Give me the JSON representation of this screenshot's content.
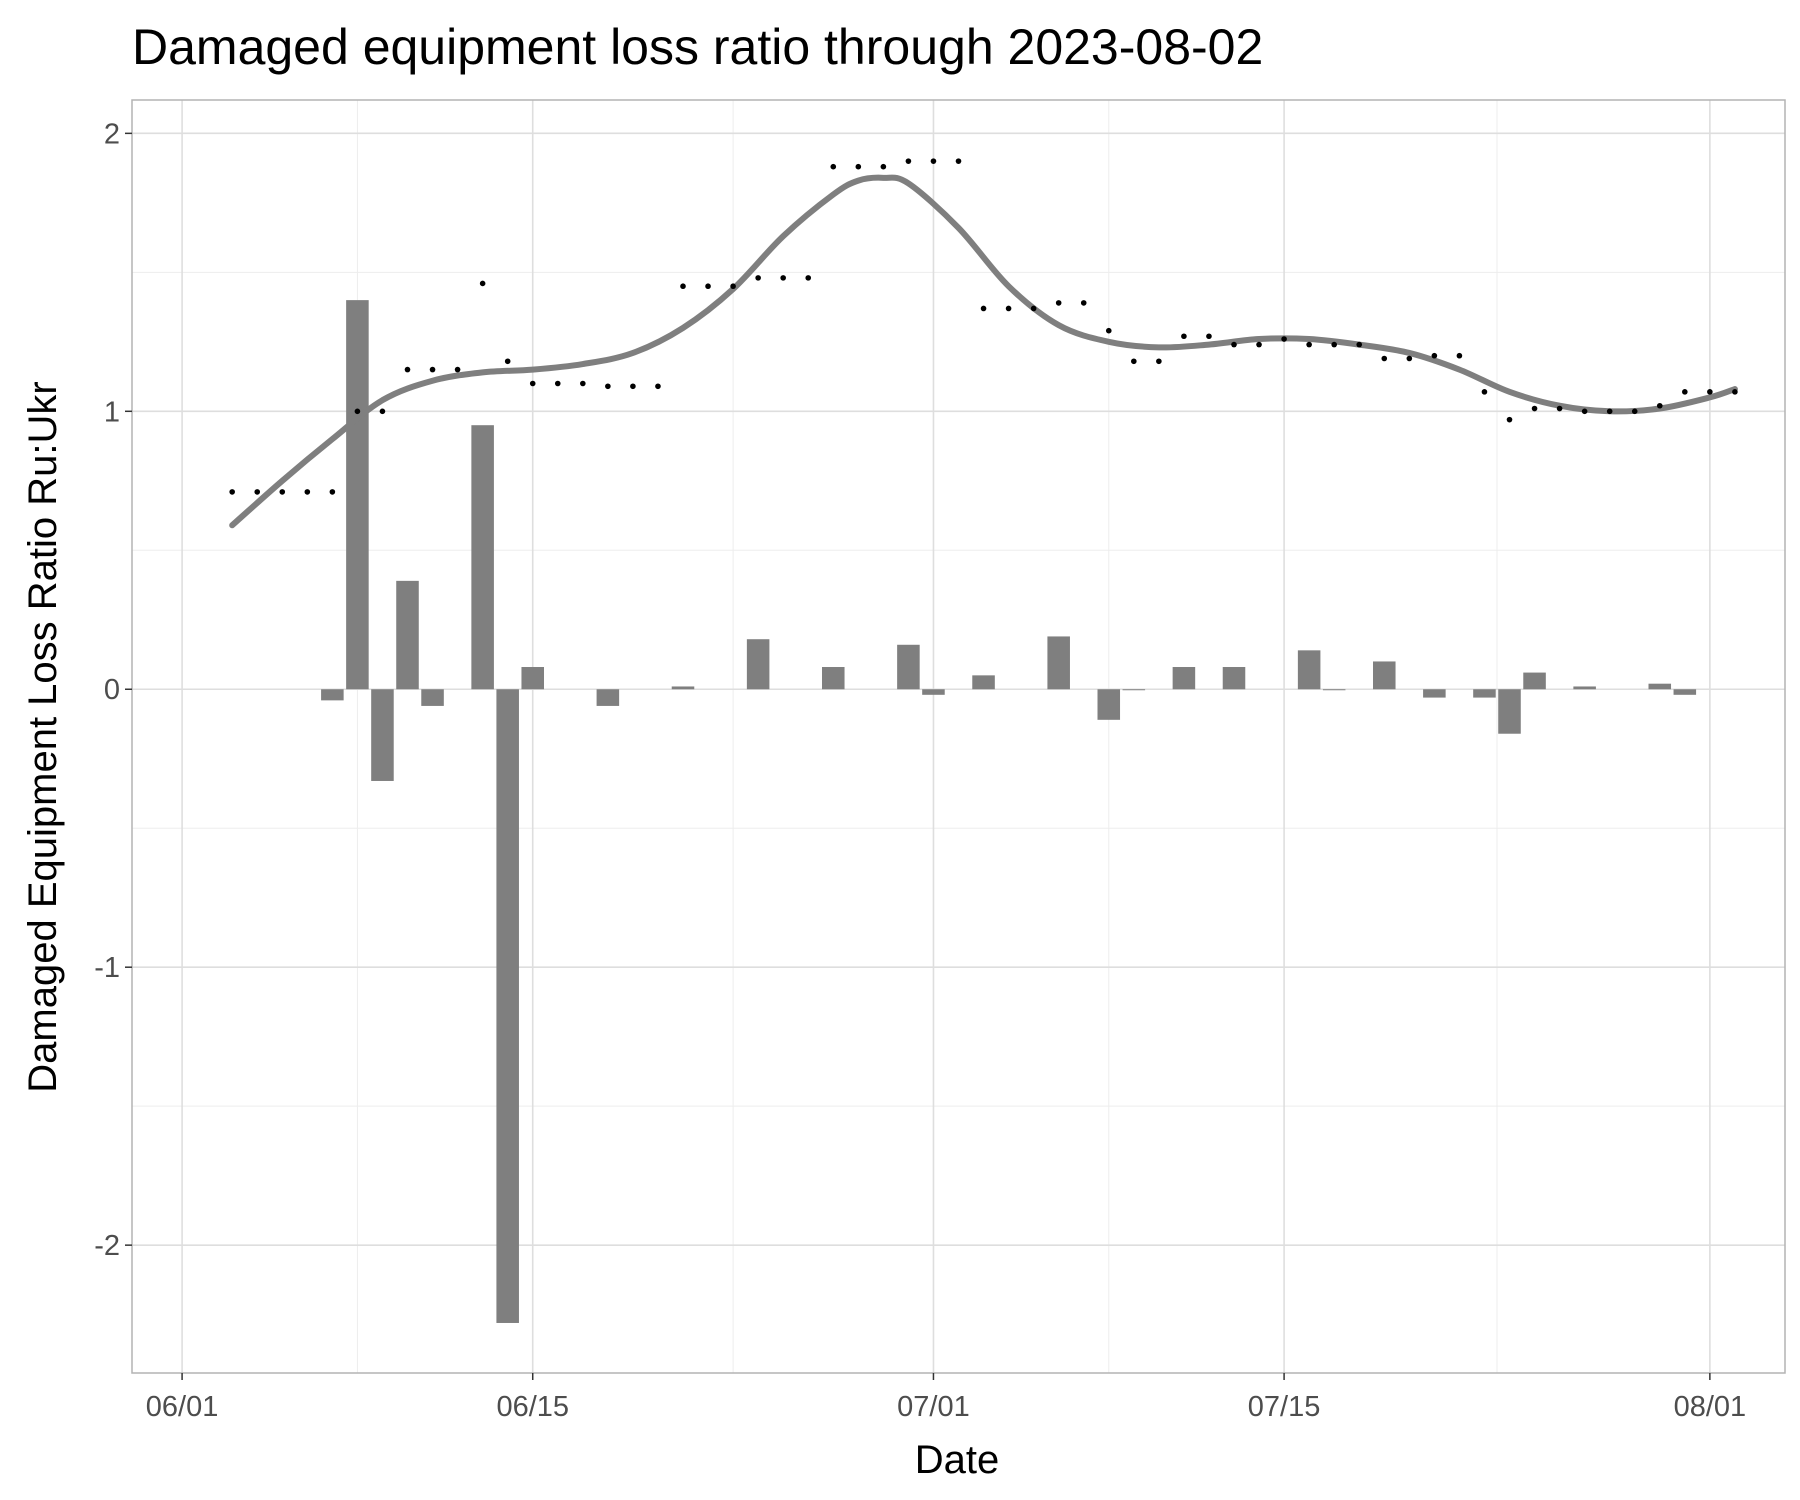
{
  "chart_data": {
    "type": "bar",
    "title": "Damaged equipment loss ratio through 2023-08-02",
    "xlabel": "Date",
    "ylabel": "Damaged Equipment Loss Ratio Ru:Ukr",
    "x_axis": {
      "type": "date",
      "range": [
        "2023-05-30",
        "2023-08-04"
      ],
      "ticks": [
        {
          "date": "2023-06-01",
          "label": "06/01"
        },
        {
          "date": "2023-06-15",
          "label": "06/15"
        },
        {
          "date": "2023-07-01",
          "label": "07/01"
        },
        {
          "date": "2023-07-15",
          "label": "07/15"
        },
        {
          "date": "2023-08-01",
          "label": "08/01"
        }
      ]
    },
    "y_axis": {
      "range": [
        -2.46,
        2.12
      ],
      "ticks": [
        -2,
        -1,
        0,
        1,
        2
      ],
      "tick_labels": [
        "-2",
        "-1",
        "0",
        "1",
        "2"
      ]
    },
    "grid": true,
    "legend": "none",
    "colors": {
      "bars": "#7f7f7f",
      "points": "#000000",
      "smooth_line": "#7f7f7f",
      "grid_major": "#dedede",
      "grid_minor": "#ededed",
      "panel_border": "#b3b3b3"
    },
    "series": [
      {
        "kind": "points",
        "x": [
          "2023-06-03",
          "2023-06-04",
          "2023-06-05",
          "2023-06-06",
          "2023-06-07",
          "2023-06-08",
          "2023-06-09",
          "2023-06-10",
          "2023-06-11",
          "2023-06-12",
          "2023-06-13",
          "2023-06-14",
          "2023-06-15",
          "2023-06-16",
          "2023-06-17",
          "2023-06-18",
          "2023-06-19",
          "2023-06-20",
          "2023-06-21",
          "2023-06-22",
          "2023-06-23",
          "2023-06-24",
          "2023-06-25",
          "2023-06-26",
          "2023-06-27",
          "2023-06-28",
          "2023-06-29",
          "2023-06-30",
          "2023-07-01",
          "2023-07-02",
          "2023-07-03",
          "2023-07-04",
          "2023-07-05",
          "2023-07-06",
          "2023-07-07",
          "2023-07-08",
          "2023-07-09",
          "2023-07-10",
          "2023-07-11",
          "2023-07-12",
          "2023-07-13",
          "2023-07-14",
          "2023-07-15",
          "2023-07-16",
          "2023-07-17",
          "2023-07-18",
          "2023-07-19",
          "2023-07-20",
          "2023-07-21",
          "2023-07-22",
          "2023-07-23",
          "2023-07-24",
          "2023-07-25",
          "2023-07-26",
          "2023-07-27",
          "2023-07-28",
          "2023-07-29",
          "2023-07-30",
          "2023-07-31",
          "2023-08-01",
          "2023-08-02"
        ],
        "y": [
          0.71,
          0.71,
          0.71,
          0.71,
          0.71,
          1.0,
          1.0,
          1.15,
          1.15,
          1.15,
          1.46,
          1.18,
          1.1,
          1.1,
          1.1,
          1.09,
          1.09,
          1.09,
          1.45,
          1.45,
          1.45,
          1.48,
          1.48,
          1.48,
          1.88,
          1.88,
          1.88,
          1.9,
          1.9,
          1.9,
          1.37,
          1.37,
          1.37,
          1.39,
          1.39,
          1.29,
          1.18,
          1.18,
          1.27,
          1.27,
          1.24,
          1.24,
          1.26,
          1.24,
          1.24,
          1.24,
          1.19,
          1.19,
          1.2,
          1.2,
          1.07,
          0.97,
          1.01,
          1.01,
          1.0,
          1.0,
          1.0,
          1.02,
          1.07,
          1.07,
          1.07
        ]
      },
      {
        "kind": "bars",
        "x": [
          "2023-06-07",
          "2023-06-08",
          "2023-06-09",
          "2023-06-10",
          "2023-06-11",
          "2023-06-13",
          "2023-06-14",
          "2023-06-15",
          "2023-06-18",
          "2023-06-21",
          "2023-06-24",
          "2023-06-27",
          "2023-06-30",
          "2023-07-01",
          "2023-07-03",
          "2023-07-06",
          "2023-07-08",
          "2023-07-09",
          "2023-07-11",
          "2023-07-13",
          "2023-07-16",
          "2023-07-17",
          "2023-07-19",
          "2023-07-21",
          "2023-07-23",
          "2023-07-24",
          "2023-07-25",
          "2023-07-27",
          "2023-07-30",
          "2023-07-31"
        ],
        "y": [
          -0.04,
          1.4,
          -0.33,
          0.39,
          -0.06,
          0.95,
          -2.28,
          0.08,
          -0.06,
          0.01,
          0.18,
          0.08,
          0.16,
          -0.02,
          0.05,
          0.19,
          -0.11,
          0.0,
          0.08,
          0.08,
          0.14,
          0.0,
          0.1,
          -0.03,
          -0.03,
          -0.16,
          0.06,
          0.01,
          0.02,
          -0.02
        ]
      },
      {
        "kind": "smooth",
        "x": [
          "2023-06-03",
          "2023-06-05",
          "2023-06-07",
          "2023-06-09",
          "2023-06-11",
          "2023-06-13",
          "2023-06-15",
          "2023-06-17",
          "2023-06-19",
          "2023-06-21",
          "2023-06-23",
          "2023-06-25",
          "2023-06-27",
          "2023-06-28",
          "2023-06-29",
          "2023-06-30",
          "2023-07-02",
          "2023-07-04",
          "2023-07-06",
          "2023-07-08",
          "2023-07-10",
          "2023-07-12",
          "2023-07-14",
          "2023-07-16",
          "2023-07-18",
          "2023-07-20",
          "2023-07-22",
          "2023-07-24",
          "2023-07-26",
          "2023-07-28",
          "2023-07-30",
          "2023-08-01",
          "2023-08-02"
        ],
        "y": [
          0.59,
          0.75,
          0.9,
          1.04,
          1.11,
          1.14,
          1.15,
          1.17,
          1.21,
          1.3,
          1.44,
          1.63,
          1.78,
          1.83,
          1.84,
          1.82,
          1.66,
          1.45,
          1.31,
          1.25,
          1.23,
          1.24,
          1.26,
          1.26,
          1.24,
          1.21,
          1.15,
          1.07,
          1.02,
          1.0,
          1.01,
          1.05,
          1.08
        ]
      }
    ]
  }
}
